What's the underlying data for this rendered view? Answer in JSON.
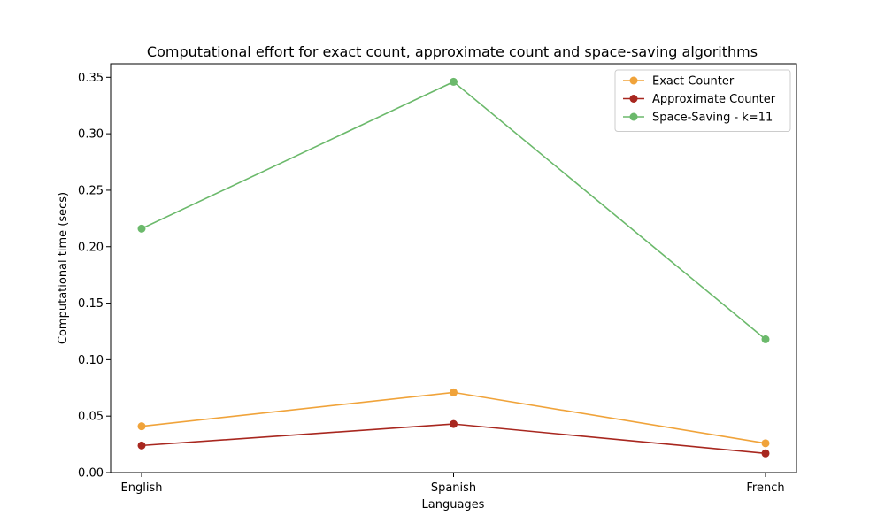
{
  "chart_data": {
    "type": "line",
    "title": "Computational effort for exact count, approximate count and space-saving algorithms",
    "xlabel": "Languages",
    "ylabel": "Computational time (secs)",
    "categories": [
      "English",
      "Spanish",
      "French"
    ],
    "ylim": [
      0,
      0.362
    ],
    "yticks": [
      0.0,
      0.05,
      0.1,
      0.15,
      0.2,
      0.25,
      0.3,
      0.35
    ],
    "ytick_labels": [
      "0.00",
      "0.05",
      "0.10",
      "0.15",
      "0.20",
      "0.25",
      "0.30",
      "0.35"
    ],
    "grid": false,
    "legend_position": "top-right",
    "series": [
      {
        "name": "Exact Counter",
        "color": "#f0a33a",
        "values": [
          0.041,
          0.071,
          0.026
        ]
      },
      {
        "name": "Approximate Counter",
        "color": "#a8271f",
        "values": [
          0.024,
          0.043,
          0.017
        ]
      },
      {
        "name": "Space-Saving - k=11",
        "color": "#6bb96b",
        "values": [
          0.216,
          0.346,
          0.118
        ]
      }
    ]
  }
}
